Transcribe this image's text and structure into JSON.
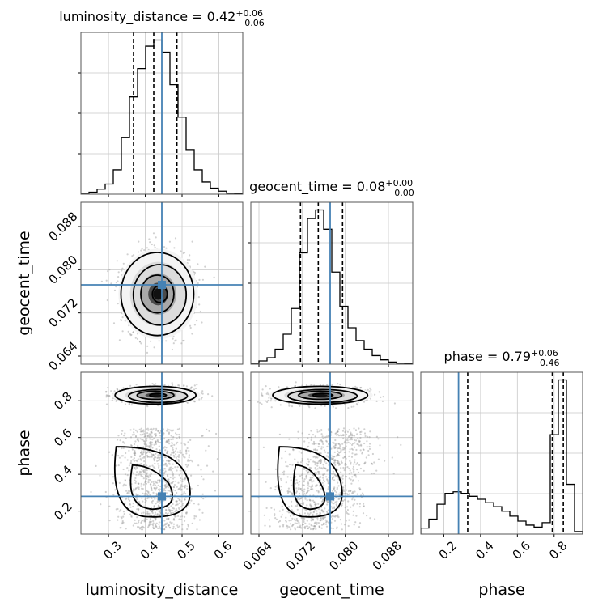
{
  "chart_data": {
    "type": "corner",
    "parameters": [
      "luminosity_distance",
      "geocent_time",
      "phase"
    ],
    "truths": {
      "luminosity_distance": 0.445,
      "geocent_time": 0.0772,
      "phase": 0.28
    },
    "titles": [
      {
        "name": "luminosity_distance",
        "median": "0.42",
        "plus": "+0.06",
        "minus": "−0.06"
      },
      {
        "name": "geocent_time",
        "median": "0.08",
        "plus": "+0.00",
        "minus": "−0.00"
      },
      {
        "name": "phase",
        "median": "0.79",
        "plus": "+0.06",
        "minus": "−0.46"
      }
    ],
    "ranges": {
      "luminosity_distance": [
        0.225,
        0.665
      ],
      "geocent_time": [
        0.0625,
        0.0925
      ],
      "phase": [
        0.075,
        0.955
      ]
    },
    "ticks": {
      "luminosity_distance": [
        0.3,
        0.4,
        0.5,
        0.6
      ],
      "geocent_time": [
        0.064,
        0.072,
        0.08,
        0.088
      ],
      "phase": [
        0.2,
        0.4,
        0.6,
        0.8
      ]
    },
    "tick_labels": {
      "luminosity_distance": [
        "0.3",
        "0.4",
        "0.5",
        "0.6"
      ],
      "geocent_time": [
        "0.064",
        "0.072",
        "0.080",
        "0.088"
      ],
      "phase": [
        "0.2",
        "0.4",
        "0.6",
        "0.8"
      ]
    },
    "histograms": {
      "luminosity_distance": {
        "edges": [
          0.225,
          0.247,
          0.269,
          0.291,
          0.313,
          0.335,
          0.357,
          0.379,
          0.401,
          0.423,
          0.445,
          0.467,
          0.489,
          0.511,
          0.533,
          0.555,
          0.577,
          0.599,
          0.621,
          0.643,
          0.665
        ],
        "counts": [
          0.5,
          1,
          2.5,
          5,
          12,
          28,
          48,
          62,
          73,
          76,
          70,
          54,
          38,
          22,
          12,
          6,
          3,
          1.5,
          0.5,
          0.2
        ],
        "quantiles": [
          0.368,
          0.423,
          0.486
        ]
      },
      "geocent_time": {
        "edges": [
          0.0625,
          0.064,
          0.0655,
          0.067,
          0.0685,
          0.07,
          0.0715,
          0.073,
          0.0745,
          0.076,
          0.0775,
          0.079,
          0.0805,
          0.082,
          0.0835,
          0.085,
          0.0865,
          0.088,
          0.0895,
          0.091,
          0.0925
        ],
        "counts": [
          0.5,
          1.5,
          3,
          7,
          14,
          26,
          52,
          68,
          72,
          63,
          43,
          27,
          17,
          11,
          7,
          4,
          2,
          1,
          0.5,
          0.2
        ],
        "quantiles": [
          0.0717,
          0.075,
          0.0795
        ]
      },
      "phase": {
        "edges": [
          0.075,
          0.119,
          0.163,
          0.207,
          0.251,
          0.295,
          0.339,
          0.383,
          0.427,
          0.471,
          0.515,
          0.559,
          0.603,
          0.647,
          0.691,
          0.735,
          0.779,
          0.823,
          0.867,
          0.911,
          0.955
        ],
        "counts": [
          1.2,
          3,
          6,
          8.2,
          8.5,
          8.2,
          7.6,
          7,
          6.3,
          5.5,
          4.6,
          3.6,
          2.6,
          1.8,
          1.4,
          2.3,
          20,
          31,
          10,
          0.5
        ],
        "quantiles": [
          0.33,
          0.79,
          0.85
        ]
      }
    },
    "panels_2d": [
      {
        "x": "luminosity_distance",
        "y": "geocent_time",
        "cx": 0.435,
        "cy": 0.0755,
        "sx": 0.045,
        "sy": 0.0035
      },
      {
        "x": "luminosity_distance",
        "y": "phase",
        "cx": 0.43,
        "cy": 0.83,
        "sx": 0.05,
        "sy": 0.022
      },
      {
        "x": "geocent_time",
        "y": "phase",
        "cx": 0.0755,
        "cy": 0.83,
        "sx": 0.004,
        "sy": 0.022
      }
    ],
    "grid": true
  }
}
